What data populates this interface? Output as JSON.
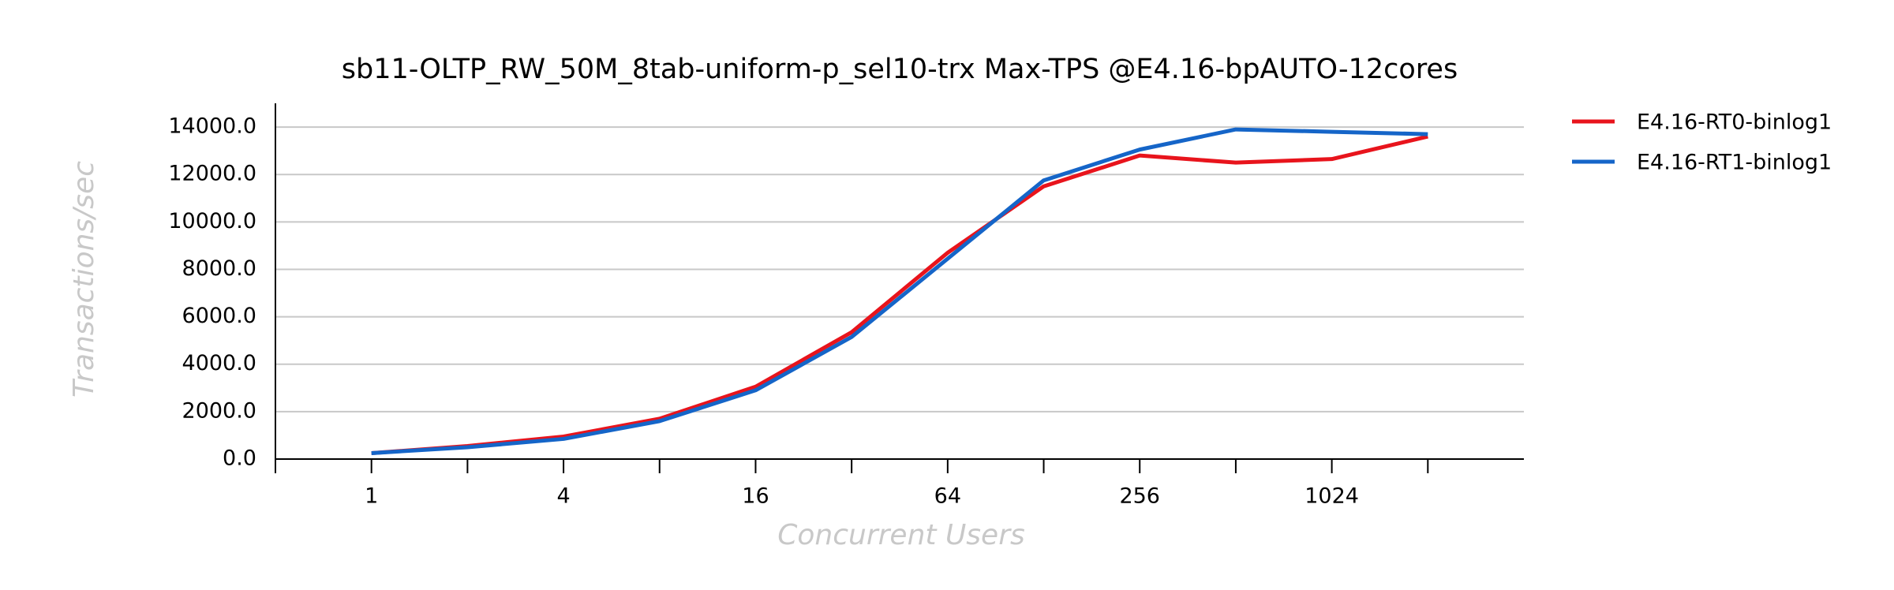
{
  "chart_data": {
    "type": "line",
    "title": "sb11-OLTP_RW_50M_8tab-uniform-p_sel10-trx Max-TPS @E4.16-bpAUTO-12cores",
    "x_label": "Concurrent Users",
    "y_label": "Transactions/sec",
    "x": [
      1,
      2,
      4,
      8,
      16,
      32,
      64,
      128,
      256,
      512,
      1024,
      2048
    ],
    "x_scale": "log2",
    "xlim": [
      0.5,
      4096
    ],
    "xticks": [
      1,
      4,
      16,
      64,
      256,
      1024
    ],
    "minor_xticks": [
      0.5,
      2,
      8,
      32,
      128,
      512,
      2048
    ],
    "ylim": [
      0,
      15000
    ],
    "yticks": [
      {
        "value": 0,
        "label": "0.0"
      },
      {
        "value": 2000,
        "label": "2000.0"
      },
      {
        "value": 4000,
        "label": "4000.0"
      },
      {
        "value": 6000,
        "label": "6000.0"
      },
      {
        "value": 8000,
        "label": "8000.0"
      },
      {
        "value": 10000,
        "label": "10000.0"
      },
      {
        "value": 12000,
        "label": "12000.0"
      },
      {
        "value": 14000,
        "label": "14000.0"
      }
    ],
    "grid": true,
    "legend": "outside-right",
    "series": [
      {
        "name": "E4.16-RT0-binlog1",
        "color": "#e8141c",
        "values": [
          250,
          550,
          950,
          1700,
          3050,
          5350,
          8700,
          11500,
          12800,
          12500,
          12650,
          13600
        ]
      },
      {
        "name": "E4.16-RT1-binlog1",
        "color": "#1565c8",
        "values": [
          250,
          500,
          850,
          1600,
          2900,
          5150,
          8450,
          11750,
          13050,
          13900,
          13800,
          13700
        ]
      }
    ]
  }
}
